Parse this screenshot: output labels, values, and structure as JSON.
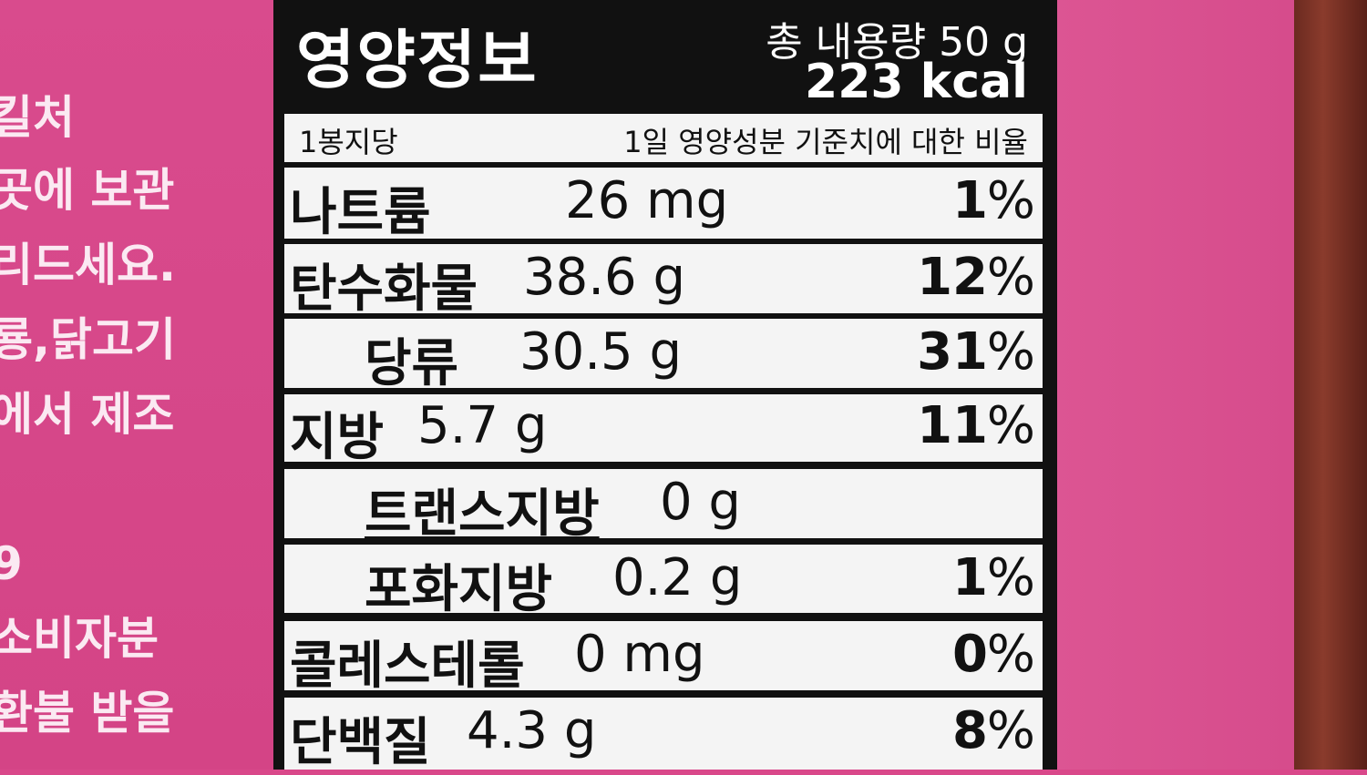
{
  "side_text": [
    "킬처",
    "곳에 보관",
    "리드세요.",
    "룡,닭고기",
    "에서 제조",
    "9",
    "소비자분",
    "환불 받을"
  ],
  "label": {
    "title": "영양정보",
    "total_amount": "총 내용량 50 g",
    "calories": "223 kcal",
    "per_serving": "1봉지당",
    "daily_value_header": "1일 영양성분 기준치에 대한 비율",
    "percent_sign": "%",
    "rows": [
      {
        "name": "나트륨",
        "amount": "26 mg",
        "percent": "1"
      },
      {
        "name": "탄수화물",
        "amount": "38.6 g",
        "percent": "12"
      },
      {
        "name": "당류",
        "amount": "30.5 g",
        "percent": "31"
      },
      {
        "name": "지방",
        "amount": "5.7 g",
        "percent": "11"
      },
      {
        "name": "트랜스지방",
        "amount": "0 g",
        "percent": ""
      },
      {
        "name": "포화지방",
        "amount": "0.2 g",
        "percent": "1"
      },
      {
        "name": "콜레스테롤",
        "amount": "0 mg",
        "percent": "0"
      },
      {
        "name": "단백질",
        "amount": "4.3 g",
        "percent": "8"
      }
    ]
  }
}
